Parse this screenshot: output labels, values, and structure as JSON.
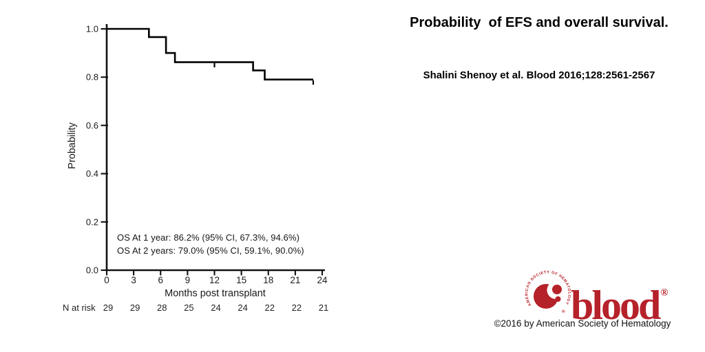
{
  "figure": {
    "y_axis_label": "Probability",
    "x_axis_label": "Months post transplant",
    "n_at_risk_label": "N at risk"
  },
  "chart_data": {
    "type": "line",
    "subtype": "kaplan-meier-step",
    "title": "",
    "xlabel": "Months post transplant",
    "ylabel": "Probability",
    "xlim": [
      0,
      24
    ],
    "ylim": [
      0.0,
      1.0
    ],
    "x_tick_values": [
      0,
      3,
      6,
      9,
      12,
      15,
      18,
      21,
      24
    ],
    "y_tick_values": [
      0.0,
      0.2,
      0.4,
      0.6,
      0.8,
      1.0
    ],
    "grid": false,
    "legend": false,
    "line_color": "#000000",
    "series": [
      {
        "name": "Overall survival",
        "steps": [
          [
            0.0,
            1.0
          ],
          [
            4.7,
            1.0
          ],
          [
            4.7,
            0.966
          ],
          [
            6.6,
            0.966
          ],
          [
            6.6,
            0.9
          ],
          [
            7.6,
            0.9
          ],
          [
            7.6,
            0.862
          ],
          [
            16.3,
            0.862
          ],
          [
            16.3,
            0.828
          ],
          [
            17.6,
            0.828
          ],
          [
            17.6,
            0.79
          ],
          [
            23.0,
            0.79
          ]
        ],
        "censor_marks": [
          [
            12.0,
            0.862
          ],
          [
            23.0,
            0.79
          ]
        ]
      }
    ],
    "annotations": [
      "OS At 1 year: 86.2% (95% CI, 67.3%, 94.6%)",
      "OS At 2 years: 79.0% (95% CI, 59.1%, 90.0%)"
    ],
    "n_at_risk": {
      "label": "N at risk",
      "times": [
        0,
        3,
        6,
        9,
        12,
        15,
        18,
        21,
        24
      ],
      "counts": [
        29,
        29,
        28,
        25,
        24,
        24,
        22,
        22,
        21
      ]
    }
  },
  "caption": {
    "title": "Probability  of EFS and overall survival.",
    "citation": "Shalini Shenoy et al. Blood 2016;128:2561-2567"
  },
  "logo": {
    "wordmark": "blood",
    "registered": "®",
    "ring_text": "AMERICAN SOCIETY OF HEMATOLOGY",
    "color": "#B6222A"
  },
  "footer": {
    "copyright": "©2016 by American Society of Hematology"
  }
}
